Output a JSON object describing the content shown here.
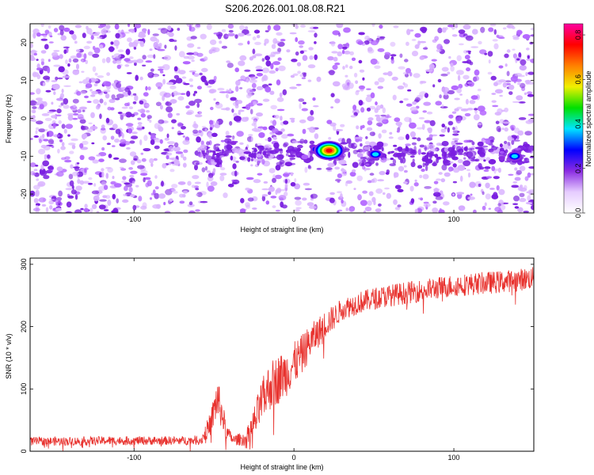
{
  "title": "S206.2026.001.08.08.R21",
  "colors": {
    "trace": "#e8322e",
    "axis": "#000000",
    "speckle_light": "#d9b3ff",
    "speckle_mid": "#b366ff",
    "speckle_dark": "#7a1ee0",
    "background": "#ffffff"
  },
  "chart_data": [
    {
      "type": "heatmap",
      "name": "spectrogram",
      "xlabel": "Height of straight line (km)",
      "ylabel": "Frequency (Hz)",
      "xlim": [
        -165,
        150
      ],
      "ylim": [
        -25,
        25
      ],
      "xticks": [
        -100,
        0,
        100
      ],
      "xtick_labels": [
        "-100",
        "0",
        "100"
      ],
      "yticks": [
        -20,
        -10,
        0,
        10,
        20
      ],
      "ytick_labels": [
        "-20",
        "-10",
        "0",
        "10",
        "20"
      ],
      "gap_x_range": [
        14,
        22
      ],
      "band_frequency_hz": -9,
      "hotspots": [
        {
          "x": -38,
          "y": -6.5,
          "amplitude": 0.25
        },
        {
          "x": 15,
          "y": -8.2,
          "amplitude": 0.4
        },
        {
          "x": 22,
          "y": -8.5,
          "amplitude": 0.85
        },
        {
          "x": 51,
          "y": -9.5,
          "amplitude": 0.45
        },
        {
          "x": 130,
          "y": -10.5,
          "amplitude": 0.2
        },
        {
          "x": 138,
          "y": -10,
          "amplitude": 0.4
        }
      ],
      "colorbar": {
        "label": "Normalized spectral amplitude",
        "range": [
          0.0,
          0.85
        ],
        "ticks": [
          0.0,
          0.2,
          0.4,
          0.6,
          0.8
        ],
        "tick_labels": [
          "0.0",
          "0.2",
          "0.4",
          "0.6",
          "0.8"
        ],
        "colormap": [
          "#ffffff",
          "#e6ccff",
          "#8a2be2",
          "#0000ff",
          "#00e5ff",
          "#00e000",
          "#f0f000",
          "#ff8000",
          "#ff0000",
          "#ff00a0"
        ]
      }
    },
    {
      "type": "line",
      "name": "snr-trace",
      "xlabel": "Height of straight line (km)",
      "ylabel": "SNR (10 * v/v)",
      "xlim": [
        -165,
        150
      ],
      "ylim": [
        0,
        310
      ],
      "xticks": [
        -100,
        0,
        100
      ],
      "xtick_labels": [
        "-100",
        "0",
        "100"
      ],
      "yticks": [
        0,
        100,
        200,
        300
      ],
      "ytick_labels": [
        "0",
        "100",
        "200",
        "300"
      ],
      "series": [
        {
          "name": "SNR",
          "color": "#e8322e",
          "x": [
            -165,
            -140,
            -115,
            -90,
            -70,
            -58,
            -52,
            -48,
            -45,
            -42,
            -38,
            -30,
            -24,
            -20,
            -15,
            -10,
            -5,
            0,
            5,
            10,
            15,
            20,
            25,
            30,
            40,
            50,
            60,
            70,
            80,
            90,
            100,
            110,
            120,
            130,
            140,
            150
          ],
          "y": [
            16,
            16,
            17,
            17,
            17,
            18,
            45,
            85,
            60,
            30,
            18,
            20,
            50,
            80,
            105,
            115,
            125,
            140,
            155,
            175,
            190,
            205,
            215,
            228,
            238,
            245,
            250,
            254,
            258,
            262,
            266,
            268,
            270,
            272,
            275,
            278
          ],
          "noise": [
            7,
            7,
            7,
            7,
            7,
            8,
            20,
            35,
            25,
            12,
            8,
            12,
            30,
            35,
            40,
            40,
            38,
            35,
            32,
            28,
            25,
            22,
            20,
            18,
            18,
            18,
            18,
            18,
            18,
            18,
            18,
            18,
            18,
            18,
            18,
            18
          ]
        }
      ]
    }
  ]
}
